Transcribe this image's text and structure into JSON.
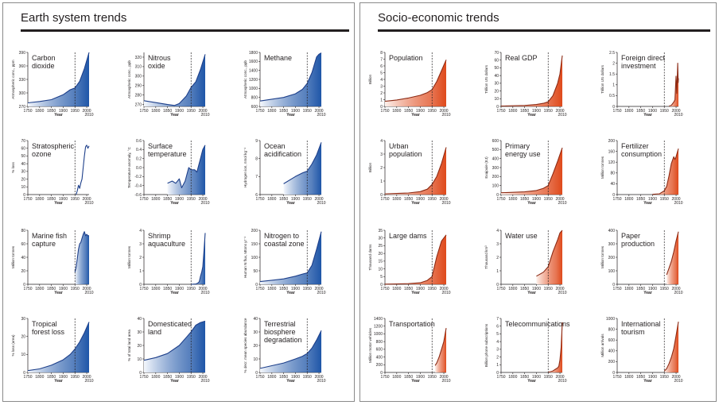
{
  "panels": [
    {
      "id": "earth",
      "title": "Earth system trends",
      "theme": "blue",
      "colors": {
        "line": "#1d3f8a",
        "fill_dark": "#1f56a8",
        "fill_light": "#f4f7fc"
      },
      "charts": [
        {
          "title": [
            "Carbon",
            "dioxide"
          ],
          "ylabel": "Atmospheric conc., ppm",
          "yticks": [
            "270",
            "300",
            "330",
            "360",
            "390"
          ],
          "ymin": 270,
          "ymax": 390,
          "x": [
            1750,
            1800,
            1850,
            1900,
            1930,
            1950,
            1970,
            1990,
            2010
          ],
          "y": [
            278,
            281,
            285,
            296,
            307,
            311,
            326,
            354,
            390
          ],
          "type": "area",
          "xstart": 1750
        },
        {
          "title": [
            "Nitrous",
            "oxide"
          ],
          "ylabel": "Atmospheric conc., ppb",
          "yticks": [
            "270",
            "280",
            "290",
            "300",
            "310",
            "320"
          ],
          "ymin": 268,
          "ymax": 325,
          "x": [
            1750,
            1800,
            1850,
            1880,
            1900,
            1930,
            1950,
            1970,
            1990,
            2010
          ],
          "y": [
            274,
            272,
            270,
            269,
            271,
            279,
            288,
            294,
            307,
            323
          ],
          "type": "area",
          "xstart": 1750
        },
        {
          "title": [
            "Methane"
          ],
          "ylabel": "Atmospheric conc., ppb",
          "yticks": [
            "600",
            "800",
            "1000",
            "1200",
            "1400",
            "1600",
            "1800"
          ],
          "ymin": 600,
          "ymax": 1800,
          "x": [
            1750,
            1800,
            1850,
            1900,
            1930,
            1950,
            1970,
            1990,
            2000,
            2010
          ],
          "y": [
            720,
            760,
            800,
            880,
            980,
            1110,
            1350,
            1700,
            1760,
            1790
          ],
          "type": "area",
          "xstart": 1750
        },
        {
          "title": [
            "Stratospheric",
            "ozone"
          ],
          "ylabel": "% loss",
          "yticks": [
            "0",
            "10",
            "20",
            "30",
            "40",
            "50",
            "60",
            "70"
          ],
          "ymin": 0,
          "ymax": 70,
          "x": [
            1955,
            1960,
            1965,
            1970,
            1975,
            1980,
            1985,
            1990,
            1995,
            2000,
            2005,
            2010
          ],
          "y": [
            0,
            5,
            12,
            8,
            15,
            20,
            35,
            50,
            62,
            64,
            60,
            63
          ],
          "type": "line",
          "xstart": 1955
        },
        {
          "title": [
            "Surface",
            "temperature"
          ],
          "ylabel": "Temperature anomaly, °C",
          "yticks": [
            "-0.6",
            "-0.4",
            "-0.2",
            "0.0",
            "0.2",
            "0.4",
            "0.6"
          ],
          "ymin": -0.6,
          "ymax": 0.6,
          "x": [
            1850,
            1870,
            1885,
            1900,
            1910,
            1925,
            1940,
            1950,
            1965,
            1975,
            1990,
            2000,
            2010
          ],
          "y": [
            -0.35,
            -0.3,
            -0.35,
            -0.25,
            -0.45,
            -0.3,
            0.0,
            -0.05,
            -0.05,
            -0.1,
            0.2,
            0.4,
            0.5
          ],
          "type": "area",
          "xstart": 1850
        },
        {
          "title": [
            "Ocean",
            "acidification"
          ],
          "ylabel": "Hydrogen ion, nmol kg⁻¹",
          "yticks": [
            "6",
            "7",
            "8",
            "9"
          ],
          "ymin": 6,
          "ymax": 9,
          "x": [
            1850,
            1900,
            1930,
            1950,
            1970,
            1990,
            2010
          ],
          "y": [
            6.6,
            7.0,
            7.2,
            7.3,
            7.7,
            8.2,
            8.9
          ],
          "type": "area",
          "xstart": 1850
        },
        {
          "title": [
            "Marine fish",
            "capture"
          ],
          "ylabel": "Million tonnes",
          "yticks": [
            "0",
            "20",
            "40",
            "60",
            "80"
          ],
          "ymin": 0,
          "ymax": 80,
          "x": [
            1950,
            1955,
            1960,
            1965,
            1970,
            1975,
            1980,
            1985,
            1990,
            1995,
            2000,
            2005,
            2010
          ],
          "y": [
            18,
            25,
            38,
            52,
            60,
            62,
            68,
            74,
            78,
            72,
            74,
            72,
            72
          ],
          "type": "area",
          "xstart": 1950
        },
        {
          "title": [
            "Shrimp",
            "aquaculture"
          ],
          "ylabel": "Million tonnes",
          "yticks": [
            "0",
            "1",
            "2",
            "3",
            "4"
          ],
          "ymin": 0,
          "ymax": 4,
          "x": [
            1950,
            1960,
            1970,
            1980,
            1985,
            1990,
            1995,
            2000,
            2005,
            2010
          ],
          "y": [
            0,
            0.01,
            0.02,
            0.1,
            0.2,
            0.6,
            0.9,
            1.3,
            2.5,
            3.8
          ],
          "type": "area",
          "xstart": 1950
        },
        {
          "title": [
            "Nitrogen to",
            "coastal zone"
          ],
          "ylabel": "Human N flux, Mtons yr⁻¹",
          "yticks": [
            "0",
            "50",
            "100",
            "150",
            "200"
          ],
          "ymin": 0,
          "ymax": 200,
          "x": [
            1750,
            1800,
            1850,
            1900,
            1930,
            1950,
            1970,
            1990,
            2010
          ],
          "y": [
            10,
            15,
            20,
            30,
            38,
            42,
            70,
            130,
            195
          ],
          "type": "area",
          "xstart": 1750
        },
        {
          "title": [
            "Tropical",
            "forest loss"
          ],
          "ylabel": "% loss (area)",
          "yticks": [
            "0",
            "10",
            "20",
            "30"
          ],
          "ymin": 0,
          "ymax": 30,
          "x": [
            1750,
            1800,
            1850,
            1900,
            1930,
            1950,
            1970,
            1990,
            2010
          ],
          "y": [
            1,
            2,
            4,
            7,
            10,
            13,
            17,
            22,
            28
          ],
          "type": "area",
          "xstart": 1750
        },
        {
          "title": [
            "Domesticated",
            "land"
          ],
          "ylabel": "% of total land area",
          "yticks": [
            "0",
            "10",
            "20",
            "30",
            "40"
          ],
          "ymin": 0,
          "ymax": 40,
          "x": [
            1750,
            1800,
            1850,
            1900,
            1930,
            1950,
            1970,
            1990,
            2010
          ],
          "y": [
            9,
            11,
            14,
            20,
            26,
            30,
            35,
            37,
            38
          ],
          "type": "area",
          "xstart": 1750
        },
        {
          "title": [
            "Terrestrial",
            "biosphere",
            "degradation"
          ],
          "ylabel": "% decr. mean species abundance",
          "yticks": [
            "0",
            "10",
            "20",
            "30",
            "40"
          ],
          "ymin": 0,
          "ymax": 40,
          "x": [
            1750,
            1800,
            1850,
            1900,
            1930,
            1950,
            1970,
            1990,
            2010
          ],
          "y": [
            3,
            5,
            7,
            10,
            12,
            14,
            18,
            24,
            31
          ],
          "type": "area",
          "xstart": 1750
        }
      ]
    },
    {
      "id": "socio",
      "title": "Socio-economic trends",
      "theme": "red",
      "colors": {
        "line": "#8c2a14",
        "fill_dark": "#df4a1c",
        "fill_light": "#fdf1ec"
      },
      "charts": [
        {
          "title": [
            "Population"
          ],
          "ylabel": "Billion",
          "yticks": [
            "0",
            "1",
            "2",
            "3",
            "4",
            "5",
            "6",
            "7",
            "8"
          ],
          "ymin": 0,
          "ymax": 8,
          "x": [
            1750,
            1800,
            1850,
            1900,
            1930,
            1950,
            1970,
            1990,
            2000,
            2010
          ],
          "y": [
            0.75,
            0.95,
            1.25,
            1.65,
            2.05,
            2.5,
            3.7,
            5.3,
            6.1,
            6.9
          ],
          "type": "area",
          "xstart": 1750
        },
        {
          "title": [
            "Real GDP"
          ],
          "ylabel": "Trillion US dollars",
          "yticks": [
            "0",
            "10",
            "20",
            "30",
            "40",
            "50",
            "60",
            "70"
          ],
          "ymin": 0,
          "ymax": 70,
          "x": [
            1750,
            1800,
            1850,
            1900,
            1930,
            1950,
            1970,
            1990,
            2000,
            2010
          ],
          "y": [
            0.5,
            0.8,
            1.2,
            2.5,
            4,
            6,
            14,
            30,
            42,
            66
          ],
          "type": "area",
          "xstart": 1750
        },
        {
          "title": [
            "Foreign direct",
            "investment"
          ],
          "ylabel": "Trillion US dollars",
          "yticks": [
            "0",
            "0.5",
            "1",
            "1.5",
            "2",
            "2.5"
          ],
          "ymin": 0,
          "ymax": 2.5,
          "x": [
            1970,
            1980,
            1990,
            1995,
            2000,
            2003,
            2007,
            2009,
            2010
          ],
          "y": [
            0.02,
            0.05,
            0.2,
            0.3,
            1.4,
            0.6,
            2.0,
            1.1,
            1.3
          ],
          "type": "area",
          "xstart": 1970
        },
        {
          "title": [
            "Urban",
            "population"
          ],
          "ylabel": "Billion",
          "yticks": [
            "0",
            "1",
            "2",
            "3",
            "4"
          ],
          "ymin": 0,
          "ymax": 4,
          "x": [
            1750,
            1800,
            1850,
            1900,
            1930,
            1950,
            1970,
            1990,
            2010
          ],
          "y": [
            0.05,
            0.08,
            0.12,
            0.22,
            0.4,
            0.75,
            1.35,
            2.3,
            3.5
          ],
          "type": "area",
          "xstart": 1750
        },
        {
          "title": [
            "Primary",
            "energy use"
          ],
          "ylabel": "Exajoule (EJ)",
          "yticks": [
            "0",
            "100",
            "200",
            "300",
            "400",
            "500",
            "600"
          ],
          "ymin": 0,
          "ymax": 600,
          "x": [
            1750,
            1800,
            1850,
            1900,
            1930,
            1950,
            1970,
            1990,
            2010
          ],
          "y": [
            20,
            25,
            30,
            45,
            70,
            100,
            230,
            370,
            520
          ],
          "type": "area",
          "xstart": 1750
        },
        {
          "title": [
            "Fertilizer",
            "consumption"
          ],
          "ylabel": "Million tonnes",
          "yticks": [
            "0",
            "40",
            "80",
            "120",
            "160",
            "200"
          ],
          "ymin": 0,
          "ymax": 200,
          "x": [
            1900,
            1930,
            1950,
            1960,
            1970,
            1980,
            1990,
            1995,
            2000,
            2010
          ],
          "y": [
            1,
            3,
            14,
            30,
            70,
            115,
            140,
            130,
            140,
            170
          ],
          "type": "area",
          "xstart": 1900
        },
        {
          "title": [
            "Large dams"
          ],
          "ylabel": "Thousand dams",
          "yticks": [
            "0",
            "5",
            "10",
            "15",
            "20",
            "25",
            "30",
            "35"
          ],
          "ymin": 0,
          "ymax": 35,
          "x": [
            1750,
            1800,
            1850,
            1900,
            1930,
            1950,
            1970,
            1990,
            2010
          ],
          "y": [
            0.1,
            0.2,
            0.4,
            1,
            2.5,
            5,
            18,
            28,
            32
          ],
          "type": "area",
          "xstart": 1750
        },
        {
          "title": [
            "Water use"
          ],
          "ylabel": "Thousand km³",
          "yticks": [
            "0",
            "1",
            "2",
            "3",
            "4"
          ],
          "ymin": 0,
          "ymax": 4,
          "x": [
            1900,
            1930,
            1950,
            1970,
            1990,
            2000,
            2010
          ],
          "y": [
            0.6,
            0.9,
            1.3,
            2.4,
            3.3,
            3.8,
            4.0
          ],
          "type": "area",
          "xstart": 1900
        },
        {
          "title": [
            "Paper",
            "production"
          ],
          "ylabel": "Million tonnes",
          "yticks": [
            "0",
            "100",
            "200",
            "300",
            "400"
          ],
          "ymin": 0,
          "ymax": 400,
          "x": [
            1960,
            1970,
            1980,
            1990,
            2000,
            2010
          ],
          "y": [
            70,
            120,
            170,
            240,
            320,
            390
          ],
          "type": "area",
          "xstart": 1960
        },
        {
          "title": [
            "Transportation"
          ],
          "ylabel": "Million motor vehicles",
          "yticks": [
            "0",
            "200",
            "400",
            "600",
            "800",
            "1000",
            "1200",
            "1400"
          ],
          "ymin": 0,
          "ymax": 1400,
          "x": [
            1963,
            1970,
            1980,
            1990,
            2000,
            2010
          ],
          "y": [
            180,
            250,
            400,
            600,
            800,
            1150
          ],
          "type": "area",
          "xstart": 1963
        },
        {
          "title": [
            "Telecommunications"
          ],
          "ylabel": "Billion phone subscriptions",
          "yticks": [
            "0",
            "1",
            "2",
            "3",
            "4",
            "5",
            "6",
            "7"
          ],
          "ymin": 0,
          "ymax": 7,
          "x": [
            1950,
            1960,
            1970,
            1980,
            1990,
            1995,
            2000,
            2005,
            2010
          ],
          "y": [
            0.05,
            0.1,
            0.2,
            0.4,
            0.6,
            0.8,
            1.6,
            3.2,
            6.5
          ],
          "type": "area",
          "xstart": 1950
        },
        {
          "title": [
            "International",
            "tourism"
          ],
          "ylabel": "Million arrivals",
          "yticks": [
            "0",
            "200",
            "400",
            "600",
            "800",
            "1000"
          ],
          "ymin": 0,
          "ymax": 1000,
          "x": [
            1950,
            1960,
            1970,
            1980,
            1990,
            2000,
            2010
          ],
          "y": [
            25,
            70,
            165,
            280,
            440,
            680,
            940
          ],
          "type": "area",
          "xstart": 1950
        }
      ]
    }
  ],
  "x_axis": {
    "label": "Year",
    "ticks": [
      "1750",
      "1800",
      "1850",
      "1900",
      "1950",
      "2000"
    ],
    "end_label": "2010",
    "xmin": 1750,
    "xmax": 2010,
    "marker_year": 1950
  }
}
